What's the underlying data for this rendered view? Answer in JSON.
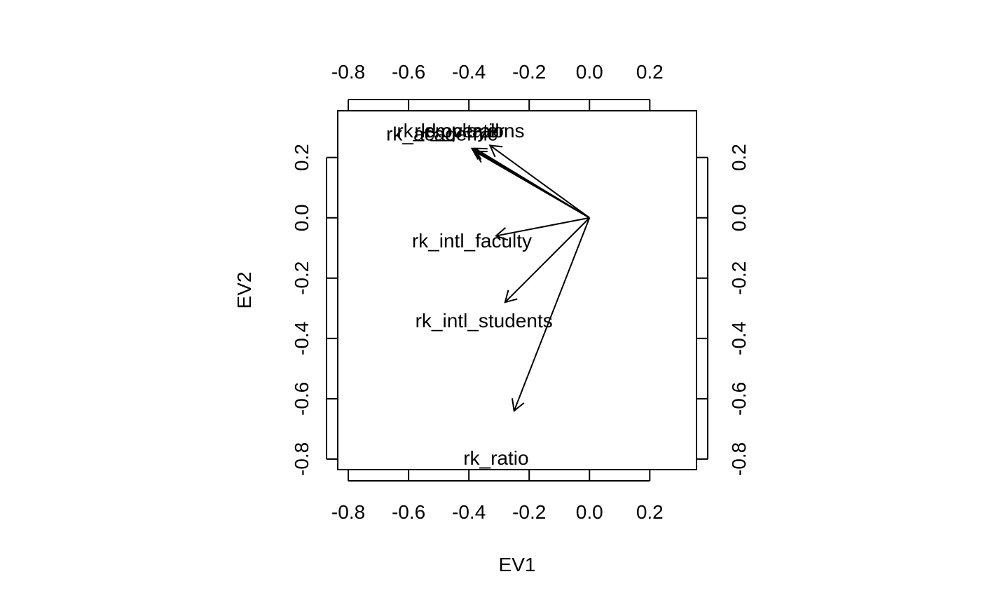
{
  "chart_data": {
    "type": "biplot",
    "title": "",
    "xlabel": "EV1",
    "ylabel": "EV2",
    "xlim": [
      -0.835,
      0.355
    ],
    "ylim": [
      -0.835,
      0.355
    ],
    "x_ticks": [
      -0.8,
      -0.6,
      -0.4,
      -0.2,
      0.0,
      0.2
    ],
    "x_tick_labels": [
      "-0.8",
      "-0.6",
      "-0.4",
      "-0.2",
      "0.0",
      "0.2"
    ],
    "y_ticks": [
      -0.8,
      -0.6,
      -0.4,
      -0.2,
      0.0,
      0.2
    ],
    "y_tick_labels": [
      "-0.8",
      "-0.6",
      "-0.4",
      "-0.2",
      "0.0",
      "0.2"
    ],
    "axes": [
      "bottom",
      "left",
      "top",
      "right"
    ],
    "grid": false,
    "arrows": [
      {
        "label": "rk_academic",
        "x": -0.39,
        "y": 0.23,
        "label_x": -0.49,
        "label_y": 0.28
      },
      {
        "label": "rk_employer",
        "x": -0.38,
        "y": 0.22,
        "label_x": -0.46,
        "label_y": 0.29
      },
      {
        "label": "rk_overall",
        "x": -0.38,
        "y": 0.23,
        "label_x": -0.44,
        "label_y": 0.29
      },
      {
        "label": "rk_citations",
        "x": -0.33,
        "y": 0.24,
        "label_x": -0.38,
        "label_y": 0.29
      },
      {
        "label": "rk_intl_faculty",
        "x": -0.31,
        "y": -0.06,
        "label_x": -0.39,
        "label_y": -0.075
      },
      {
        "label": "rk_intl_students",
        "x": -0.28,
        "y": -0.28,
        "label_x": -0.35,
        "label_y": -0.34
      },
      {
        "label": "rk_ratio",
        "x": -0.25,
        "y": -0.64,
        "label_x": -0.31,
        "label_y": -0.795
      }
    ]
  }
}
